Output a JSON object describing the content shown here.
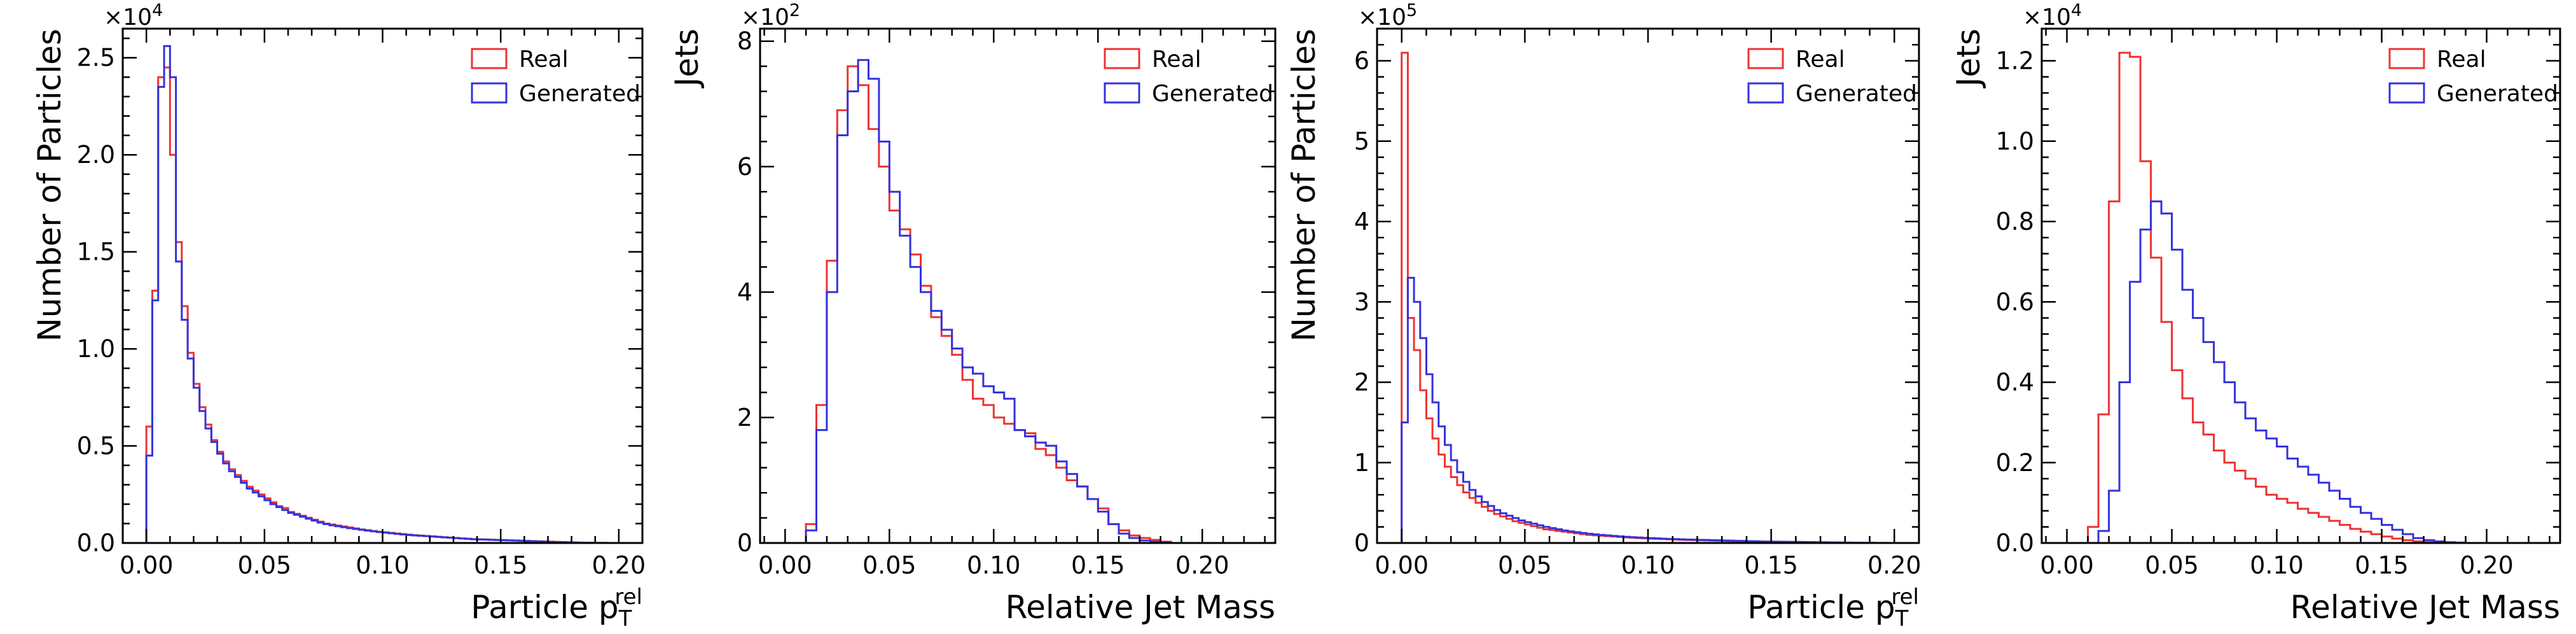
{
  "figure": {
    "panels": [
      {
        "xlabel": "Particle p",
        "xlabel_sub": "T",
        "xlabel_sup": "rel",
        "ylabel": "Number of Particles",
        "exponent_base": "×10",
        "exponent_power": "4",
        "legend": [
          "Real",
          "Generated"
        ]
      },
      {
        "xlabel": "Relative Jet Mass",
        "ylabel": "Jets",
        "exponent_base": "×10",
        "exponent_power": "2",
        "legend": [
          "Real",
          "Generated"
        ]
      },
      {
        "xlabel": "Particle p",
        "xlabel_sub": "T",
        "xlabel_sup": "rel",
        "ylabel": "Number of Particles",
        "exponent_base": "×10",
        "exponent_power": "5",
        "legend": [
          "Real",
          "Generated"
        ]
      },
      {
        "xlabel": "Relative Jet Mass",
        "ylabel": "Jets",
        "exponent_base": "×10",
        "exponent_power": "4",
        "legend": [
          "Real",
          "Generated"
        ]
      }
    ]
  },
  "chart_data": [
    {
      "type": "histogram",
      "xlabel": "Particle p_T^rel",
      "ylabel": "Number of Particles",
      "scale_factor": 10000,
      "xlim": [
        -0.01,
        0.21
      ],
      "ylim": [
        0,
        2.65
      ],
      "xticks": [
        0.0,
        0.05,
        0.1,
        0.15,
        0.2
      ],
      "xtick_labels": [
        "0.00",
        "0.05",
        "0.10",
        "0.15",
        "0.20"
      ],
      "yticks": [
        0.0,
        0.5,
        1.0,
        1.5,
        2.0,
        2.5
      ],
      "ytick_labels": [
        "0.0",
        "0.5",
        "1.0",
        "1.5",
        "2.0",
        "2.5"
      ],
      "legend_position": "top-right",
      "bin_start": 0.0,
      "bin_width": 0.0025,
      "series": [
        {
          "name": "Real",
          "color": "#ee3333",
          "values": [
            0.6,
            1.3,
            2.4,
            2.45,
            2.0,
            1.55,
            1.22,
            0.98,
            0.82,
            0.7,
            0.61,
            0.53,
            0.47,
            0.42,
            0.38,
            0.35,
            0.32,
            0.29,
            0.27,
            0.25,
            0.23,
            0.21,
            0.19,
            0.18,
            0.16,
            0.15,
            0.14,
            0.13,
            0.12,
            0.11,
            0.1,
            0.095,
            0.09,
            0.085,
            0.08,
            0.075,
            0.07,
            0.066,
            0.062,
            0.058,
            0.055,
            0.052,
            0.049,
            0.046,
            0.043,
            0.04,
            0.038,
            0.036,
            0.034,
            0.032,
            0.03,
            0.028,
            0.026,
            0.024,
            0.022,
            0.02,
            0.019,
            0.018,
            0.017,
            0.016,
            0.015,
            0.014,
            0.013,
            0.012,
            0.011,
            0.01,
            0.009,
            0.008,
            0.007,
            0.006,
            0.005,
            0.004,
            0.003,
            0.002,
            0.001,
            0.0005,
            0.0003,
            0.0002,
            0.0001,
            0.0001
          ]
        },
        {
          "name": "Generated",
          "color": "#3333dd",
          "values": [
            0.45,
            1.25,
            2.35,
            2.56,
            2.4,
            1.45,
            1.15,
            0.95,
            0.8,
            0.68,
            0.59,
            0.52,
            0.46,
            0.41,
            0.37,
            0.34,
            0.31,
            0.28,
            0.26,
            0.24,
            0.22,
            0.2,
            0.185,
            0.17,
            0.155,
            0.145,
            0.135,
            0.125,
            0.115,
            0.105,
            0.097,
            0.091,
            0.086,
            0.081,
            0.076,
            0.072,
            0.068,
            0.064,
            0.06,
            0.056,
            0.053,
            0.05,
            0.047,
            0.044,
            0.041,
            0.039,
            0.037,
            0.035,
            0.033,
            0.031,
            0.029,
            0.027,
            0.025,
            0.023,
            0.021,
            0.019,
            0.018,
            0.017,
            0.016,
            0.015,
            0.014,
            0.013,
            0.012,
            0.011,
            0.01,
            0.009,
            0.008,
            0.007,
            0.006,
            0.005,
            0.004,
            0.003,
            0.002,
            0.0015,
            0.001,
            0.0006,
            0.0004,
            0.0002,
            0.0001,
            0.0001
          ]
        }
      ]
    },
    {
      "type": "histogram",
      "xlabel": "Relative Jet Mass",
      "ylabel": "Jets",
      "scale_factor": 100,
      "xlim": [
        -0.012,
        0.235
      ],
      "ylim": [
        0,
        8.2
      ],
      "xticks": [
        0.0,
        0.05,
        0.1,
        0.15,
        0.2
      ],
      "xtick_labels": [
        "0.00",
        "0.05",
        "0.10",
        "0.15",
        "0.20"
      ],
      "yticks": [
        0,
        2,
        4,
        6,
        8
      ],
      "ytick_labels": [
        "0",
        "2",
        "4",
        "6",
        "8"
      ],
      "legend_position": "top-right",
      "bin_start": 0.0,
      "bin_width": 0.005,
      "series": [
        {
          "name": "Real",
          "color": "#ee3333",
          "values": [
            0.0,
            0.0,
            0.3,
            2.2,
            4.5,
            6.9,
            7.6,
            7.3,
            6.6,
            6.0,
            5.3,
            5.0,
            4.6,
            4.1,
            3.6,
            3.3,
            3.0,
            2.6,
            2.3,
            2.2,
            2.0,
            1.9,
            1.8,
            1.75,
            1.5,
            1.4,
            1.2,
            1.0,
            0.9,
            0.7,
            0.55,
            0.3,
            0.2,
            0.12,
            0.08,
            0.05,
            0.02,
            0.0,
            0.0,
            0.0
          ]
        },
        {
          "name": "Generated",
          "color": "#3333dd",
          "values": [
            0.0,
            0.0,
            0.2,
            1.8,
            4.0,
            6.5,
            7.2,
            7.7,
            7.4,
            6.4,
            5.6,
            4.9,
            4.4,
            4.0,
            3.7,
            3.4,
            3.1,
            2.8,
            2.7,
            2.5,
            2.4,
            2.3,
            1.8,
            1.7,
            1.6,
            1.55,
            1.3,
            1.1,
            0.9,
            0.7,
            0.5,
            0.3,
            0.15,
            0.08,
            0.04,
            0.02,
            0.01,
            0.0,
            0.0,
            0.0
          ]
        }
      ]
    },
    {
      "type": "histogram",
      "xlabel": "Particle p_T^rel",
      "ylabel": "Number of Particles",
      "scale_factor": 100000,
      "xlim": [
        -0.01,
        0.21
      ],
      "ylim": [
        0,
        6.4
      ],
      "xticks": [
        0.0,
        0.05,
        0.1,
        0.15,
        0.2
      ],
      "xtick_labels": [
        "0.00",
        "0.05",
        "0.10",
        "0.15",
        "0.20"
      ],
      "yticks": [
        0,
        1,
        2,
        3,
        4,
        5,
        6
      ],
      "ytick_labels": [
        "0",
        "1",
        "2",
        "3",
        "4",
        "5",
        "6"
      ],
      "legend_position": "top-right",
      "bin_start": 0.0,
      "bin_width": 0.0025,
      "series": [
        {
          "name": "Real",
          "color": "#ee3333",
          "values": [
            6.1,
            2.8,
            2.4,
            1.9,
            1.55,
            1.3,
            1.1,
            0.95,
            0.82,
            0.72,
            0.63,
            0.56,
            0.5,
            0.45,
            0.4,
            0.36,
            0.33,
            0.3,
            0.27,
            0.25,
            0.23,
            0.21,
            0.19,
            0.17,
            0.16,
            0.15,
            0.14,
            0.13,
            0.12,
            0.11,
            0.1,
            0.095,
            0.09,
            0.085,
            0.08,
            0.075,
            0.07,
            0.066,
            0.062,
            0.058,
            0.055,
            0.052,
            0.049,
            0.046,
            0.043,
            0.04,
            0.038,
            0.036,
            0.034,
            0.032,
            0.03,
            0.028,
            0.026,
            0.024,
            0.022,
            0.02,
            0.019,
            0.018,
            0.017,
            0.016,
            0.015,
            0.014,
            0.013,
            0.012,
            0.011,
            0.01,
            0.009,
            0.008,
            0.007,
            0.006,
            0.005,
            0.004,
            0.003,
            0.002,
            0.001,
            0.0007,
            0.0004,
            0.0002,
            0.0001,
            0.0001
          ]
        },
        {
          "name": "Generated",
          "color": "#3333dd",
          "values": [
            1.5,
            3.3,
            3.0,
            2.55,
            2.1,
            1.75,
            1.45,
            1.22,
            1.03,
            0.88,
            0.76,
            0.66,
            0.58,
            0.51,
            0.46,
            0.41,
            0.37,
            0.34,
            0.31,
            0.28,
            0.26,
            0.24,
            0.22,
            0.2,
            0.185,
            0.17,
            0.155,
            0.145,
            0.135,
            0.125,
            0.115,
            0.107,
            0.1,
            0.094,
            0.088,
            0.082,
            0.077,
            0.072,
            0.068,
            0.064,
            0.06,
            0.057,
            0.054,
            0.051,
            0.048,
            0.045,
            0.043,
            0.041,
            0.039,
            0.037,
            0.035,
            0.033,
            0.031,
            0.029,
            0.027,
            0.025,
            0.023,
            0.021,
            0.019,
            0.018,
            0.017,
            0.016,
            0.015,
            0.014,
            0.013,
            0.012,
            0.011,
            0.01,
            0.009,
            0.008,
            0.007,
            0.006,
            0.005,
            0.004,
            0.003,
            0.002,
            0.0015,
            0.001,
            0.0006,
            0.0003
          ]
        }
      ]
    },
    {
      "type": "histogram",
      "xlabel": "Relative Jet Mass",
      "ylabel": "Jets",
      "scale_factor": 10000,
      "xlim": [
        -0.012,
        0.235
      ],
      "ylim": [
        0,
        1.28
      ],
      "xticks": [
        0.0,
        0.05,
        0.1,
        0.15,
        0.2
      ],
      "xtick_labels": [
        "0.00",
        "0.05",
        "0.10",
        "0.15",
        "0.20"
      ],
      "yticks": [
        0.0,
        0.2,
        0.4,
        0.6,
        0.8,
        1.0,
        1.2
      ],
      "ytick_labels": [
        "0.0",
        "0.2",
        "0.4",
        "0.6",
        "0.8",
        "1.0",
        "1.2"
      ],
      "legend_position": "top-right",
      "bin_start": 0.0,
      "bin_width": 0.005,
      "series": [
        {
          "name": "Real",
          "color": "#ee3333",
          "values": [
            0.0,
            0.0,
            0.04,
            0.32,
            0.85,
            1.22,
            1.21,
            0.95,
            0.71,
            0.55,
            0.43,
            0.36,
            0.3,
            0.27,
            0.23,
            0.2,
            0.18,
            0.16,
            0.14,
            0.12,
            0.11,
            0.1,
            0.085,
            0.075,
            0.065,
            0.055,
            0.045,
            0.035,
            0.028,
            0.022,
            0.016,
            0.011,
            0.007,
            0.004,
            0.002,
            0.001,
            0.0005,
            0.0,
            0.0,
            0.0
          ]
        },
        {
          "name": "Generated",
          "color": "#3333dd",
          "values": [
            0.0,
            0.0,
            0.0,
            0.03,
            0.13,
            0.4,
            0.65,
            0.78,
            0.85,
            0.82,
            0.73,
            0.63,
            0.56,
            0.5,
            0.45,
            0.4,
            0.35,
            0.31,
            0.28,
            0.26,
            0.24,
            0.21,
            0.19,
            0.17,
            0.15,
            0.13,
            0.11,
            0.09,
            0.075,
            0.06,
            0.045,
            0.033,
            0.022,
            0.012,
            0.007,
            0.004,
            0.002,
            0.001,
            0.0,
            0.0
          ]
        }
      ]
    }
  ]
}
